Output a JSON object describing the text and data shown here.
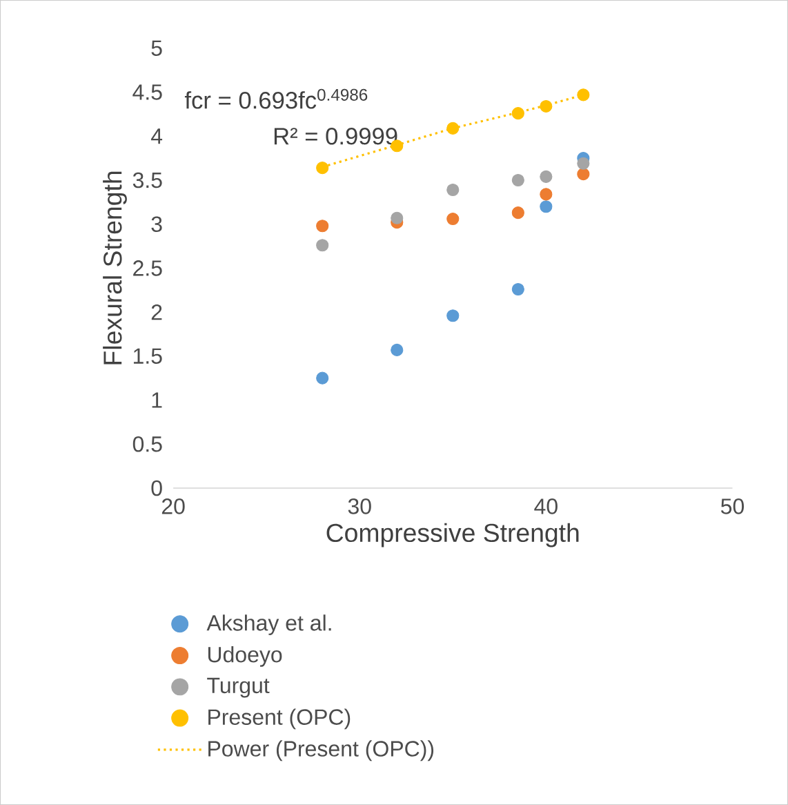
{
  "chart_data": {
    "type": "scatter",
    "xlabel": "Compressive Strength",
    "ylabel": "Flexural Strength",
    "xlim": [
      20,
      50
    ],
    "xticks": [
      20,
      30,
      40,
      50
    ],
    "ylim": [
      0,
      5
    ],
    "yticks": [
      0,
      0.5,
      1,
      1.5,
      2,
      2.5,
      3,
      3.5,
      4,
      4.5,
      5
    ],
    "marker": "circle",
    "legend": "bottom",
    "annotations": [
      "fcr = 0.693fc$^{0.4986}$",
      "R² = 0.9999"
    ],
    "series": [
      {
        "name": "Akshay et al.",
        "color": "#5b9bd5",
        "x": [
          28,
          32,
          35,
          38.5,
          40,
          42
        ],
        "values": [
          1.25,
          1.57,
          1.96,
          2.26,
          3.2,
          3.75
        ]
      },
      {
        "name": "Udoeyo",
        "color": "#ed7d31",
        "x": [
          28,
          32,
          35,
          38.5,
          40,
          42
        ],
        "values": [
          2.98,
          3.02,
          3.06,
          3.13,
          3.34,
          3.57
        ]
      },
      {
        "name": "Turgut",
        "color": "#a5a5a5",
        "x": [
          28,
          32,
          35,
          38.5,
          40,
          42
        ],
        "values": [
          2.76,
          3.07,
          3.39,
          3.5,
          3.54,
          3.69
        ]
      },
      {
        "name": "Present (OPC)",
        "color": "#ffc000",
        "x": [
          28,
          32,
          35,
          38.5,
          40,
          42
        ],
        "values": [
          3.64,
          3.89,
          4.09,
          4.26,
          4.34,
          4.47
        ]
      },
      {
        "name": "Power (Present (OPC))",
        "type": "line",
        "color": "#ffc000",
        "line_style": "dotted",
        "marker": "none",
        "x": [
          28,
          32,
          35,
          38.5,
          40,
          42
        ],
        "values": [
          3.65,
          3.9,
          4.09,
          4.27,
          4.35,
          4.47
        ]
      }
    ]
  }
}
